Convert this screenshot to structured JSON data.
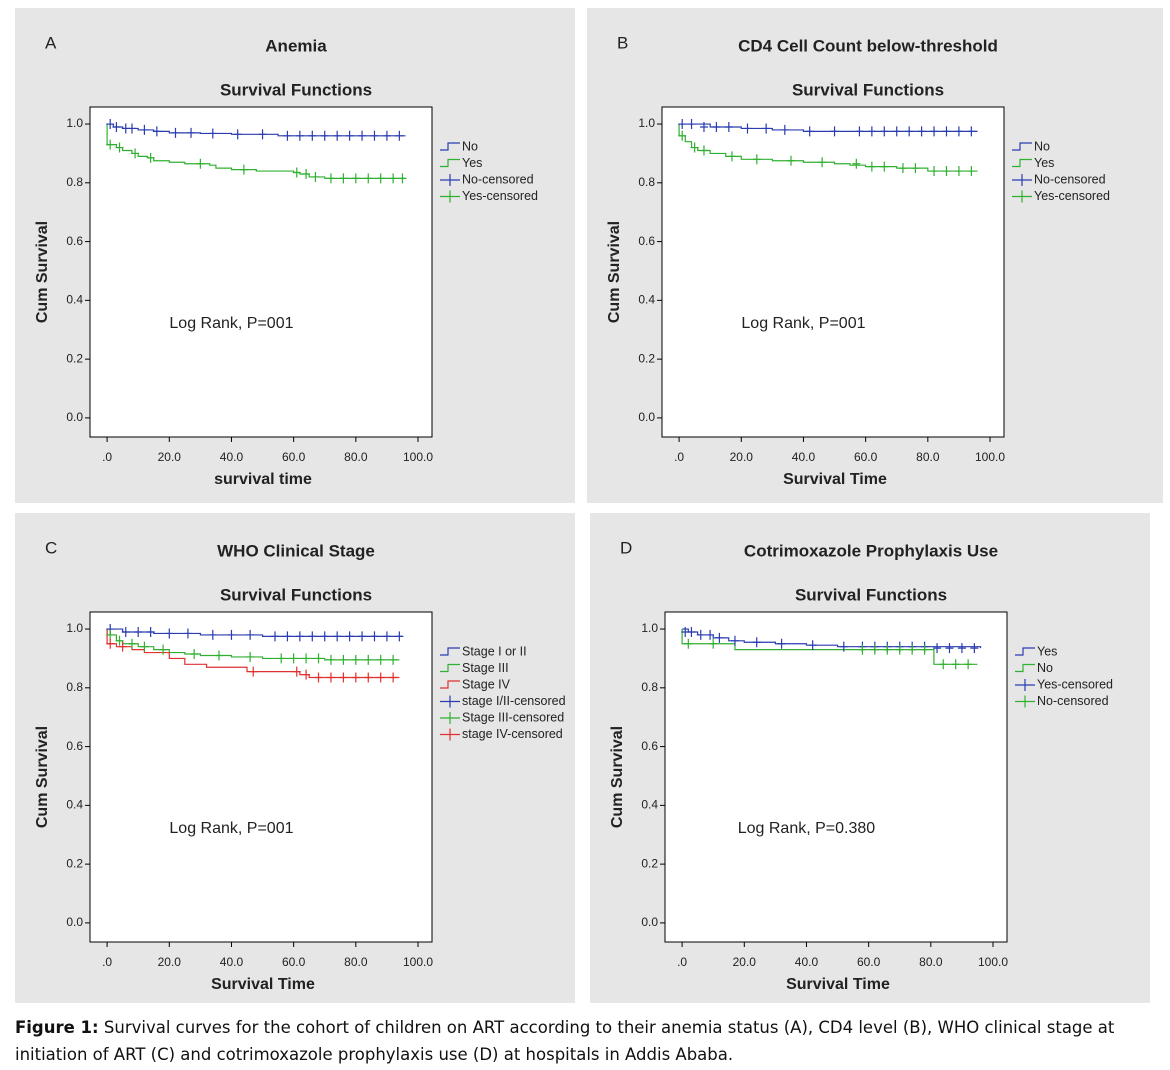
{
  "chart_data": [
    {
      "type": "line",
      "label": "A",
      "title": "Anemia",
      "subtitle": "Survival Functions",
      "xlabel": "survival time",
      "ylabel": "Cum Survival",
      "annotation": "Log Rank, P=001",
      "xlim": [
        -5.5,
        104.5
      ],
      "ylim": [
        -0.065,
        1.058
      ],
      "xticks": [
        {
          "value": 0,
          "label": ".0"
        },
        {
          "value": 20,
          "label": "20.0"
        },
        {
          "value": 40,
          "label": "40.0"
        },
        {
          "value": 60,
          "label": "60.0"
        },
        {
          "value": 80,
          "label": "80.0"
        },
        {
          "value": 100,
          "label": "100.0"
        }
      ],
      "yticks": [
        {
          "value": 0,
          "label": "0.0"
        },
        0.2,
        0.4,
        0.6,
        0.8,
        {
          "value": 1,
          "label": "1.0"
        }
      ],
      "series": [
        {
          "name": "No",
          "color": "#2a3cb0",
          "censored": false,
          "x": [
            0,
            2,
            5,
            10,
            15,
            20,
            30,
            40,
            55,
            96
          ],
          "values": [
            1.0,
            0.99,
            0.985,
            0.98,
            0.975,
            0.97,
            0.968,
            0.965,
            0.96,
            0.96
          ]
        },
        {
          "name": "Yes",
          "color": "#30b030",
          "censored": false,
          "x": [
            0,
            0,
            3,
            5,
            8,
            10,
            13,
            15,
            20,
            25,
            33,
            35,
            40,
            48,
            60,
            62,
            65,
            70,
            96
          ],
          "values": [
            1.0,
            0.93,
            0.92,
            0.91,
            0.9,
            0.89,
            0.885,
            0.875,
            0.87,
            0.865,
            0.86,
            0.85,
            0.845,
            0.84,
            0.835,
            0.83,
            0.82,
            0.815,
            0.815
          ]
        },
        {
          "name": "No-censored",
          "color": "#2a3cb0",
          "censored": true,
          "x": [
            1,
            3,
            6,
            8,
            12,
            16,
            22,
            27,
            34,
            42,
            50,
            58,
            62,
            66,
            70,
            74,
            78,
            82,
            86,
            90,
            94
          ],
          "values": [
            1.0,
            0.99,
            0.985,
            0.985,
            0.98,
            0.975,
            0.97,
            0.97,
            0.968,
            0.965,
            0.965,
            0.96,
            0.96,
            0.96,
            0.96,
            0.96,
            0.96,
            0.96,
            0.96,
            0.96,
            0.96
          ]
        },
        {
          "name": "Yes-censored",
          "color": "#30b030",
          "censored": true,
          "x": [
            1,
            4,
            9,
            14,
            30,
            44,
            61,
            64,
            67,
            72,
            76,
            80,
            84,
            88,
            92,
            95
          ],
          "values": [
            0.93,
            0.92,
            0.9,
            0.885,
            0.865,
            0.845,
            0.835,
            0.83,
            0.82,
            0.815,
            0.815,
            0.815,
            0.815,
            0.815,
            0.815,
            0.815
          ]
        }
      ]
    },
    {
      "type": "line",
      "label": "B",
      "title": "CD4 Cell Count below-threshold",
      "subtitle": "Survival Functions",
      "xlabel": "Survival Time",
      "ylabel": "Cum Survival",
      "annotation": "Log Rank, P=001",
      "xlim": [
        -5.5,
        104.5
      ],
      "ylim": [
        -0.065,
        1.058
      ],
      "xticks": [
        {
          "value": 0,
          "label": ".0"
        },
        {
          "value": 20,
          "label": "20.0"
        },
        {
          "value": 40,
          "label": "40.0"
        },
        {
          "value": 60,
          "label": "60.0"
        },
        {
          "value": 80,
          "label": "80.0"
        },
        {
          "value": 100,
          "label": "100.0"
        }
      ],
      "yticks": [
        {
          "value": 0,
          "label": "0.0"
        },
        0.2,
        0.4,
        0.6,
        0.8,
        {
          "value": 1,
          "label": "1.0"
        }
      ],
      "series": [
        {
          "name": "No",
          "color": "#2a3cb0",
          "censored": false,
          "x": [
            0,
            10,
            20,
            30,
            40,
            96
          ],
          "values": [
            1.0,
            0.99,
            0.985,
            0.98,
            0.975,
            0.975
          ]
        },
        {
          "name": "Yes",
          "color": "#30b030",
          "censored": false,
          "x": [
            0,
            0,
            2,
            4,
            6,
            10,
            15,
            20,
            30,
            40,
            50,
            55,
            60,
            70,
            80,
            96
          ],
          "values": [
            1.0,
            0.96,
            0.94,
            0.92,
            0.91,
            0.9,
            0.89,
            0.88,
            0.875,
            0.87,
            0.865,
            0.86,
            0.855,
            0.85,
            0.84,
            0.84
          ]
        },
        {
          "name": "No-censored",
          "color": "#2a3cb0",
          "censored": true,
          "x": [
            1,
            4,
            8,
            12,
            16,
            22,
            28,
            34,
            42,
            50,
            58,
            62,
            66,
            70,
            74,
            78,
            82,
            86,
            90,
            94
          ],
          "values": [
            1.0,
            1.0,
            0.99,
            0.99,
            0.99,
            0.985,
            0.985,
            0.98,
            0.975,
            0.975,
            0.975,
            0.975,
            0.975,
            0.975,
            0.975,
            0.975,
            0.975,
            0.975,
            0.975,
            0.975
          ]
        },
        {
          "name": "Yes-censored",
          "color": "#30b030",
          "censored": true,
          "x": [
            1,
            5,
            8,
            17,
            25,
            36,
            46,
            57,
            62,
            66,
            72,
            76,
            82,
            86,
            90,
            94
          ],
          "values": [
            0.96,
            0.92,
            0.91,
            0.89,
            0.88,
            0.875,
            0.87,
            0.865,
            0.855,
            0.855,
            0.85,
            0.85,
            0.84,
            0.84,
            0.84,
            0.84
          ]
        }
      ]
    },
    {
      "type": "line",
      "label": "C",
      "title": "WHO Clinical Stage",
      "subtitle": "Survival Functions",
      "xlabel": "Survival Time",
      "ylabel": "Cum Survival",
      "annotation": "Log Rank, P=001",
      "xlim": [
        -5.5,
        104.5
      ],
      "ylim": [
        -0.065,
        1.058
      ],
      "xticks": [
        {
          "value": 0,
          "label": ".0"
        },
        {
          "value": 20,
          "label": "20.0"
        },
        {
          "value": 40,
          "label": "40.0"
        },
        {
          "value": 60,
          "label": "60.0"
        },
        {
          "value": 80,
          "label": "80.0"
        },
        {
          "value": 100,
          "label": "100.0"
        }
      ],
      "yticks": [
        {
          "value": 0,
          "label": "0.0"
        },
        0.2,
        0.4,
        0.6,
        0.8,
        {
          "value": 1,
          "label": "1.0"
        }
      ],
      "series": [
        {
          "name": "Stage I or II",
          "color": "#2a3cb0",
          "censored": false,
          "x": [
            0,
            5,
            15,
            30,
            50,
            95
          ],
          "values": [
            1.0,
            0.99,
            0.985,
            0.98,
            0.975,
            0.975
          ]
        },
        {
          "name": "Stage III",
          "color": "#30b030",
          "censored": false,
          "x": [
            0,
            0,
            3,
            5,
            10,
            15,
            20,
            25,
            30,
            40,
            50,
            70,
            94
          ],
          "values": [
            1.0,
            0.98,
            0.96,
            0.95,
            0.94,
            0.93,
            0.92,
            0.915,
            0.91,
            0.905,
            0.9,
            0.895,
            0.895
          ]
        },
        {
          "name": "Stage IV",
          "color": "#e03030",
          "censored": false,
          "x": [
            0,
            0,
            3,
            8,
            12,
            20,
            25,
            32,
            45,
            60,
            62,
            65,
            94
          ],
          "values": [
            1.0,
            0.95,
            0.94,
            0.93,
            0.92,
            0.9,
            0.88,
            0.87,
            0.855,
            0.855,
            0.845,
            0.835,
            0.835
          ]
        },
        {
          "name": "stage I/II-censored",
          "color": "#2a3cb0",
          "censored": true,
          "x": [
            1,
            6,
            10,
            14,
            20,
            26,
            34,
            40,
            46,
            54,
            58,
            62,
            66,
            70,
            74,
            78,
            82,
            86,
            90,
            94
          ],
          "values": [
            1.0,
            0.99,
            0.99,
            0.99,
            0.985,
            0.985,
            0.98,
            0.98,
            0.98,
            0.975,
            0.975,
            0.975,
            0.975,
            0.975,
            0.975,
            0.975,
            0.975,
            0.975,
            0.975,
            0.975
          ]
        },
        {
          "name": "Stage III-censored",
          "color": "#30b030",
          "censored": true,
          "x": [
            1,
            4,
            8,
            12,
            18,
            28,
            36,
            46,
            56,
            60,
            64,
            68,
            72,
            76,
            80,
            84,
            88,
            92
          ],
          "values": [
            0.98,
            0.96,
            0.95,
            0.94,
            0.93,
            0.915,
            0.91,
            0.905,
            0.9,
            0.9,
            0.9,
            0.9,
            0.895,
            0.895,
            0.895,
            0.895,
            0.895,
            0.895
          ]
        },
        {
          "name": "stage IV-censored",
          "color": "#e03030",
          "censored": true,
          "x": [
            1,
            5,
            47,
            61,
            64,
            68,
            72,
            76,
            80,
            84,
            88,
            92
          ],
          "values": [
            0.95,
            0.94,
            0.855,
            0.855,
            0.845,
            0.835,
            0.835,
            0.835,
            0.835,
            0.835,
            0.835,
            0.835
          ]
        }
      ]
    },
    {
      "type": "line",
      "label": "D",
      "title": "Cotrimoxazole Prophylaxis Use",
      "subtitle": "Survival Functions",
      "xlabel": "Survival Time",
      "ylabel": "Cum Survival",
      "annotation": "Log Rank, P=0.380",
      "xlim": [
        -5.5,
        104.5
      ],
      "ylim": [
        -0.065,
        1.058
      ],
      "xticks": [
        {
          "value": 0,
          "label": ".0"
        },
        {
          "value": 20,
          "label": "20.0"
        },
        {
          "value": 40,
          "label": "40.0"
        },
        {
          "value": 60,
          "label": "60.0"
        },
        {
          "value": 80,
          "label": "80.0"
        },
        {
          "value": 100,
          "label": "100.0"
        }
      ],
      "yticks": [
        {
          "value": 0,
          "label": "0.0"
        },
        0.2,
        0.4,
        0.6,
        0.8,
        {
          "value": 1,
          "label": "1.0"
        }
      ],
      "series": [
        {
          "name": "Yes",
          "color": "#2a3cb0",
          "censored": false,
          "x": [
            0,
            2,
            5,
            10,
            15,
            20,
            30,
            40,
            50,
            96
          ],
          "values": [
            1.0,
            0.99,
            0.98,
            0.97,
            0.96,
            0.955,
            0.95,
            0.945,
            0.94,
            0.935
          ]
        },
        {
          "name": "No",
          "color": "#30b030",
          "censored": false,
          "x": [
            0,
            0,
            17,
            60,
            81,
            95
          ],
          "values": [
            1.0,
            0.95,
            0.93,
            0.93,
            0.88,
            0.88
          ]
        },
        {
          "name": "Yes-censored",
          "color": "#2a3cb0",
          "censored": true,
          "x": [
            1,
            3,
            6,
            9,
            12,
            17,
            24,
            32,
            42,
            52,
            58,
            62,
            66,
            70,
            74,
            78,
            82,
            86,
            90,
            94
          ],
          "values": [
            0.99,
            0.99,
            0.98,
            0.98,
            0.97,
            0.96,
            0.955,
            0.95,
            0.945,
            0.94,
            0.94,
            0.94,
            0.94,
            0.94,
            0.94,
            0.94,
            0.935,
            0.935,
            0.935,
            0.935
          ]
        },
        {
          "name": "No-censored",
          "color": "#30b030",
          "censored": true,
          "x": [
            2,
            10,
            58,
            62,
            66,
            70,
            74,
            78,
            84,
            88,
            92
          ],
          "values": [
            0.95,
            0.95,
            0.93,
            0.93,
            0.93,
            0.93,
            0.93,
            0.93,
            0.88,
            0.88,
            0.88
          ]
        }
      ]
    }
  ],
  "caption": {
    "label": "Figure 1:",
    "text": "Survival curves for the cohort of children on ART according to their anemia status (A), CD4 level (B), WHO clinical stage at initiation of ART (C) and cotrimoxazole prophylaxis use (D) at hospitals in Addis Ababa."
  }
}
